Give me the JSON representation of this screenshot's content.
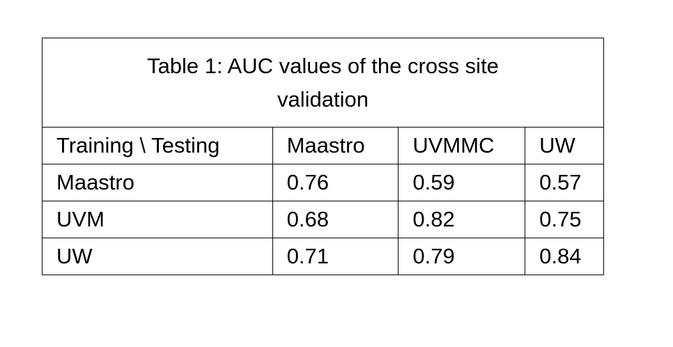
{
  "table": {
    "title": "Table 1: AUC values of the cross site validation",
    "header": [
      "Training \\ Testing",
      "Maastro",
      "UVMMC",
      "UW"
    ],
    "rows": [
      [
        "Maastro",
        0.76,
        0.59,
        0.57
      ],
      [
        "UVM",
        0.68,
        0.82,
        0.75
      ],
      [
        "UW",
        0.71,
        0.79,
        0.84
      ]
    ]
  }
}
